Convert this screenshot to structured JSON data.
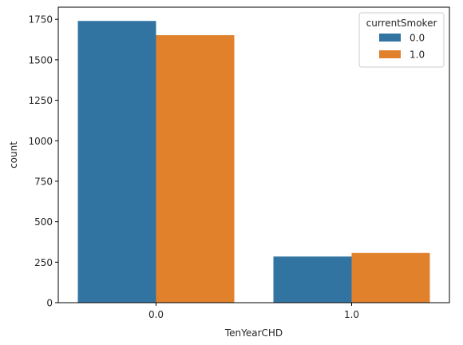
{
  "chart_data": {
    "type": "bar",
    "categories": [
      "0.0",
      "1.0"
    ],
    "series": [
      {
        "name": "0.0",
        "color": "#3274a1",
        "values": [
          1740,
          285
        ]
      },
      {
        "name": "1.0",
        "color": "#e1812c",
        "values": [
          1652,
          307
        ]
      }
    ],
    "xlabel": "TenYearCHD",
    "ylabel": "count",
    "ylim": [
      0,
      1825
    ],
    "yticks": [
      0,
      250,
      500,
      750,
      1000,
      1250,
      1500,
      1750
    ],
    "ytick_labels": [
      "0",
      "250",
      "500",
      "750",
      "1000",
      "1250",
      "1500",
      "1750"
    ],
    "legend": {
      "title": "currentSmoker",
      "position": "top-right"
    },
    "grid": false
  }
}
